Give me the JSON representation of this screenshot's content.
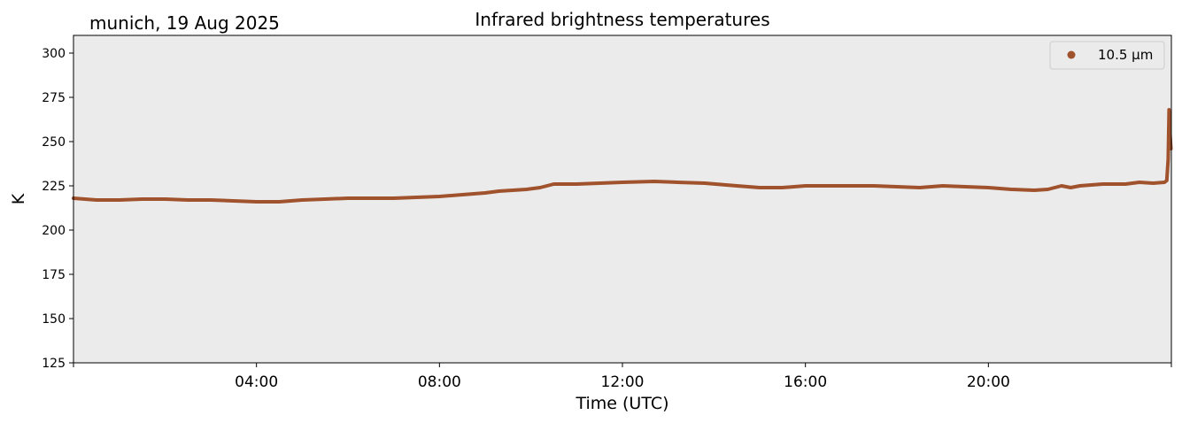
{
  "chart_data": {
    "type": "line",
    "location_date": "munich, 19 Aug 2025",
    "title": "Infrared brightness temperatures",
    "xlabel": "Time (UTC)",
    "ylabel": "K",
    "xlim": [
      0,
      24
    ],
    "ylim": [
      125,
      310
    ],
    "yticks": [
      125,
      150,
      175,
      200,
      225,
      250,
      275,
      300
    ],
    "xticks": [
      {
        "value": 0,
        "label": ""
      },
      {
        "value": 4,
        "label": "04:00"
      },
      {
        "value": 8,
        "label": "08:00"
      },
      {
        "value": 12,
        "label": "12:00"
      },
      {
        "value": 16,
        "label": "16:00"
      },
      {
        "value": 20,
        "label": "20:00"
      },
      {
        "value": 24,
        "label": ""
      }
    ],
    "plot_background": "#ebebeb",
    "legend": {
      "placement": "top-right"
    },
    "series": [
      {
        "name": "10.5 µm",
        "color": "#a0522d",
        "x": [
          0.0,
          0.5,
          1.0,
          1.5,
          2.0,
          2.5,
          3.0,
          3.5,
          4.0,
          4.5,
          5.0,
          5.5,
          6.0,
          6.5,
          7.0,
          7.5,
          8.0,
          8.5,
          9.0,
          9.3,
          9.6,
          9.9,
          10.2,
          10.5,
          11.0,
          11.5,
          12.0,
          12.7,
          13.2,
          13.8,
          14.5,
          15.0,
          15.5,
          16.0,
          16.5,
          17.0,
          17.5,
          18.0,
          18.5,
          19.0,
          19.5,
          20.0,
          20.5,
          21.0,
          21.3,
          21.6,
          21.8,
          22.0,
          22.5,
          23.0,
          23.3,
          23.6,
          23.85,
          23.9,
          23.93,
          23.95,
          23.97,
          23.99
        ],
        "y": [
          218,
          217,
          217,
          217.5,
          217.5,
          217,
          217,
          216.5,
          216,
          216,
          217,
          217.5,
          218,
          218,
          218,
          218.5,
          219,
          220,
          221,
          222,
          222.5,
          223,
          224,
          226,
          226,
          226.5,
          227,
          227.5,
          227,
          226.5,
          225,
          224,
          224,
          225,
          225,
          225,
          225,
          224.5,
          224,
          225,
          224.5,
          224,
          223,
          222.5,
          223,
          225,
          224,
          225,
          226,
          226,
          227,
          226.5,
          227,
          228,
          240,
          268,
          255,
          246
        ]
      }
    ]
  }
}
